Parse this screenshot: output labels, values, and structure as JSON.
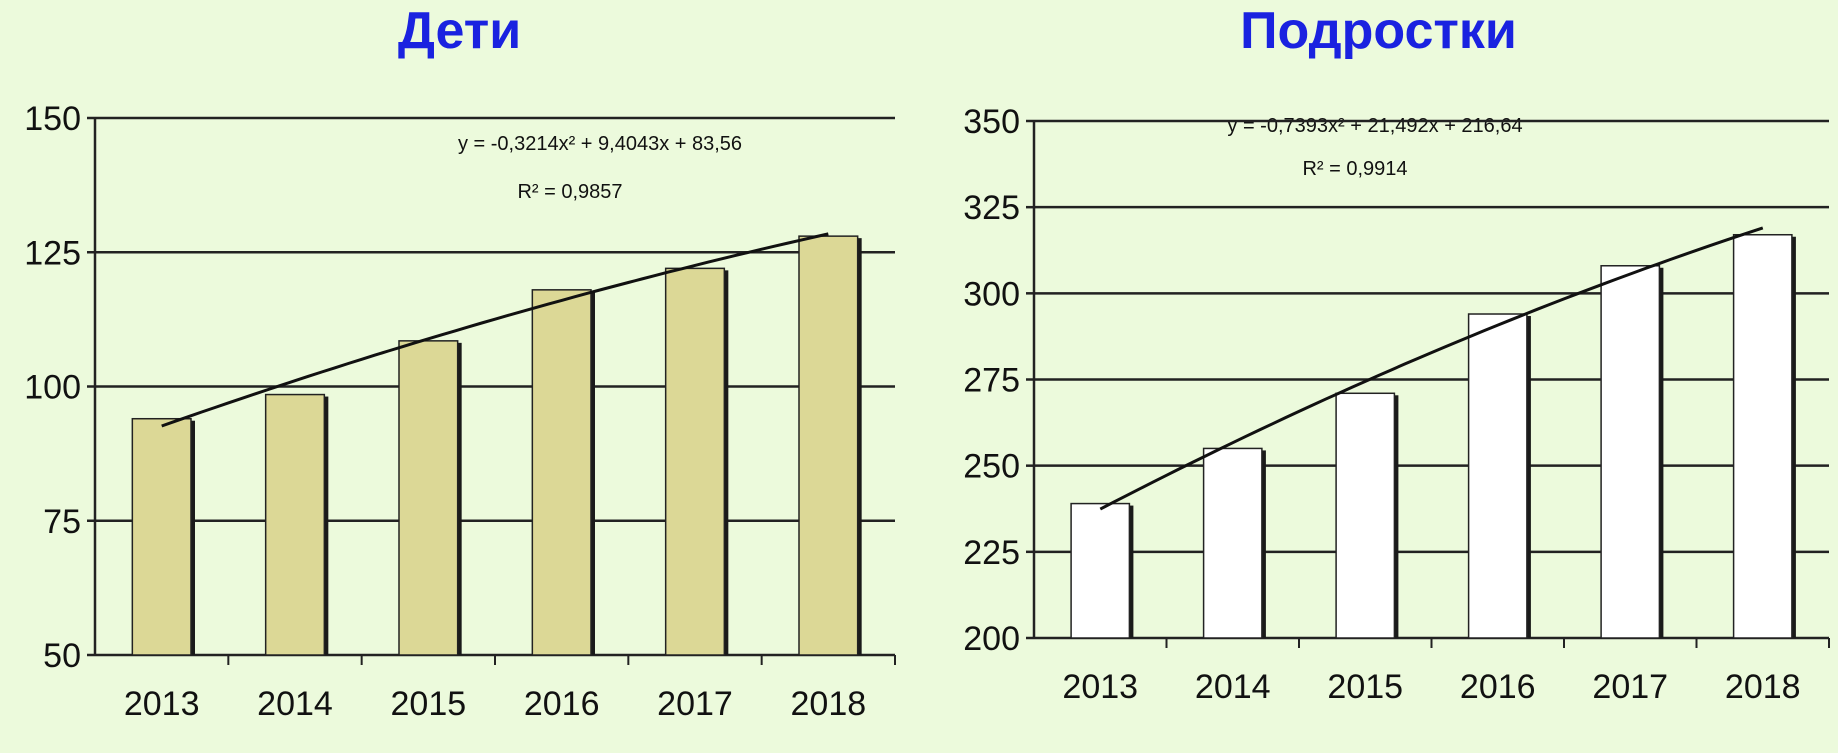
{
  "charts": {
    "left": {
      "title": "Дети",
      "equation": "y = -0,3214x² + 9,4043x + 83,56",
      "r2": "R² = 0,9857"
    },
    "right": {
      "title": "Подростки",
      "equation": "y = -0,7393x² + 21,492x + 216,64",
      "r2": "R² = 0,9914"
    }
  },
  "colors": {
    "background": "#ecfadc",
    "title": "#1a22e0",
    "bar_left": "#dcd896",
    "bar_right": "#ffffff",
    "bar_shadow": "#1a1a1a",
    "grid": "#222222",
    "trend": "#111111"
  },
  "chart_data": [
    {
      "type": "bar",
      "title": "Дети",
      "categories": [
        "2013",
        "2014",
        "2015",
        "2016",
        "2017",
        "2018"
      ],
      "values": [
        94,
        98.5,
        108.5,
        118,
        122,
        128
      ],
      "ylim": [
        50,
        150
      ],
      "yticks": [
        50,
        75,
        100,
        125,
        150
      ],
      "grid": true,
      "trendline": {
        "type": "polynomial",
        "order": 2,
        "a": -0.3214,
        "b": 9.4043,
        "c": 83.56
      }
    },
    {
      "type": "bar",
      "title": "Подростки",
      "categories": [
        "2013",
        "2014",
        "2015",
        "2016",
        "2017",
        "2018"
      ],
      "values": [
        239,
        255,
        271,
        294,
        308,
        317
      ],
      "ylim": [
        200,
        350
      ],
      "yticks": [
        200,
        225,
        250,
        275,
        300,
        325,
        350
      ],
      "grid": true,
      "trendline": {
        "type": "polynomial",
        "order": 2,
        "a": -0.7393,
        "b": 21.492,
        "c": 216.64
      }
    }
  ]
}
